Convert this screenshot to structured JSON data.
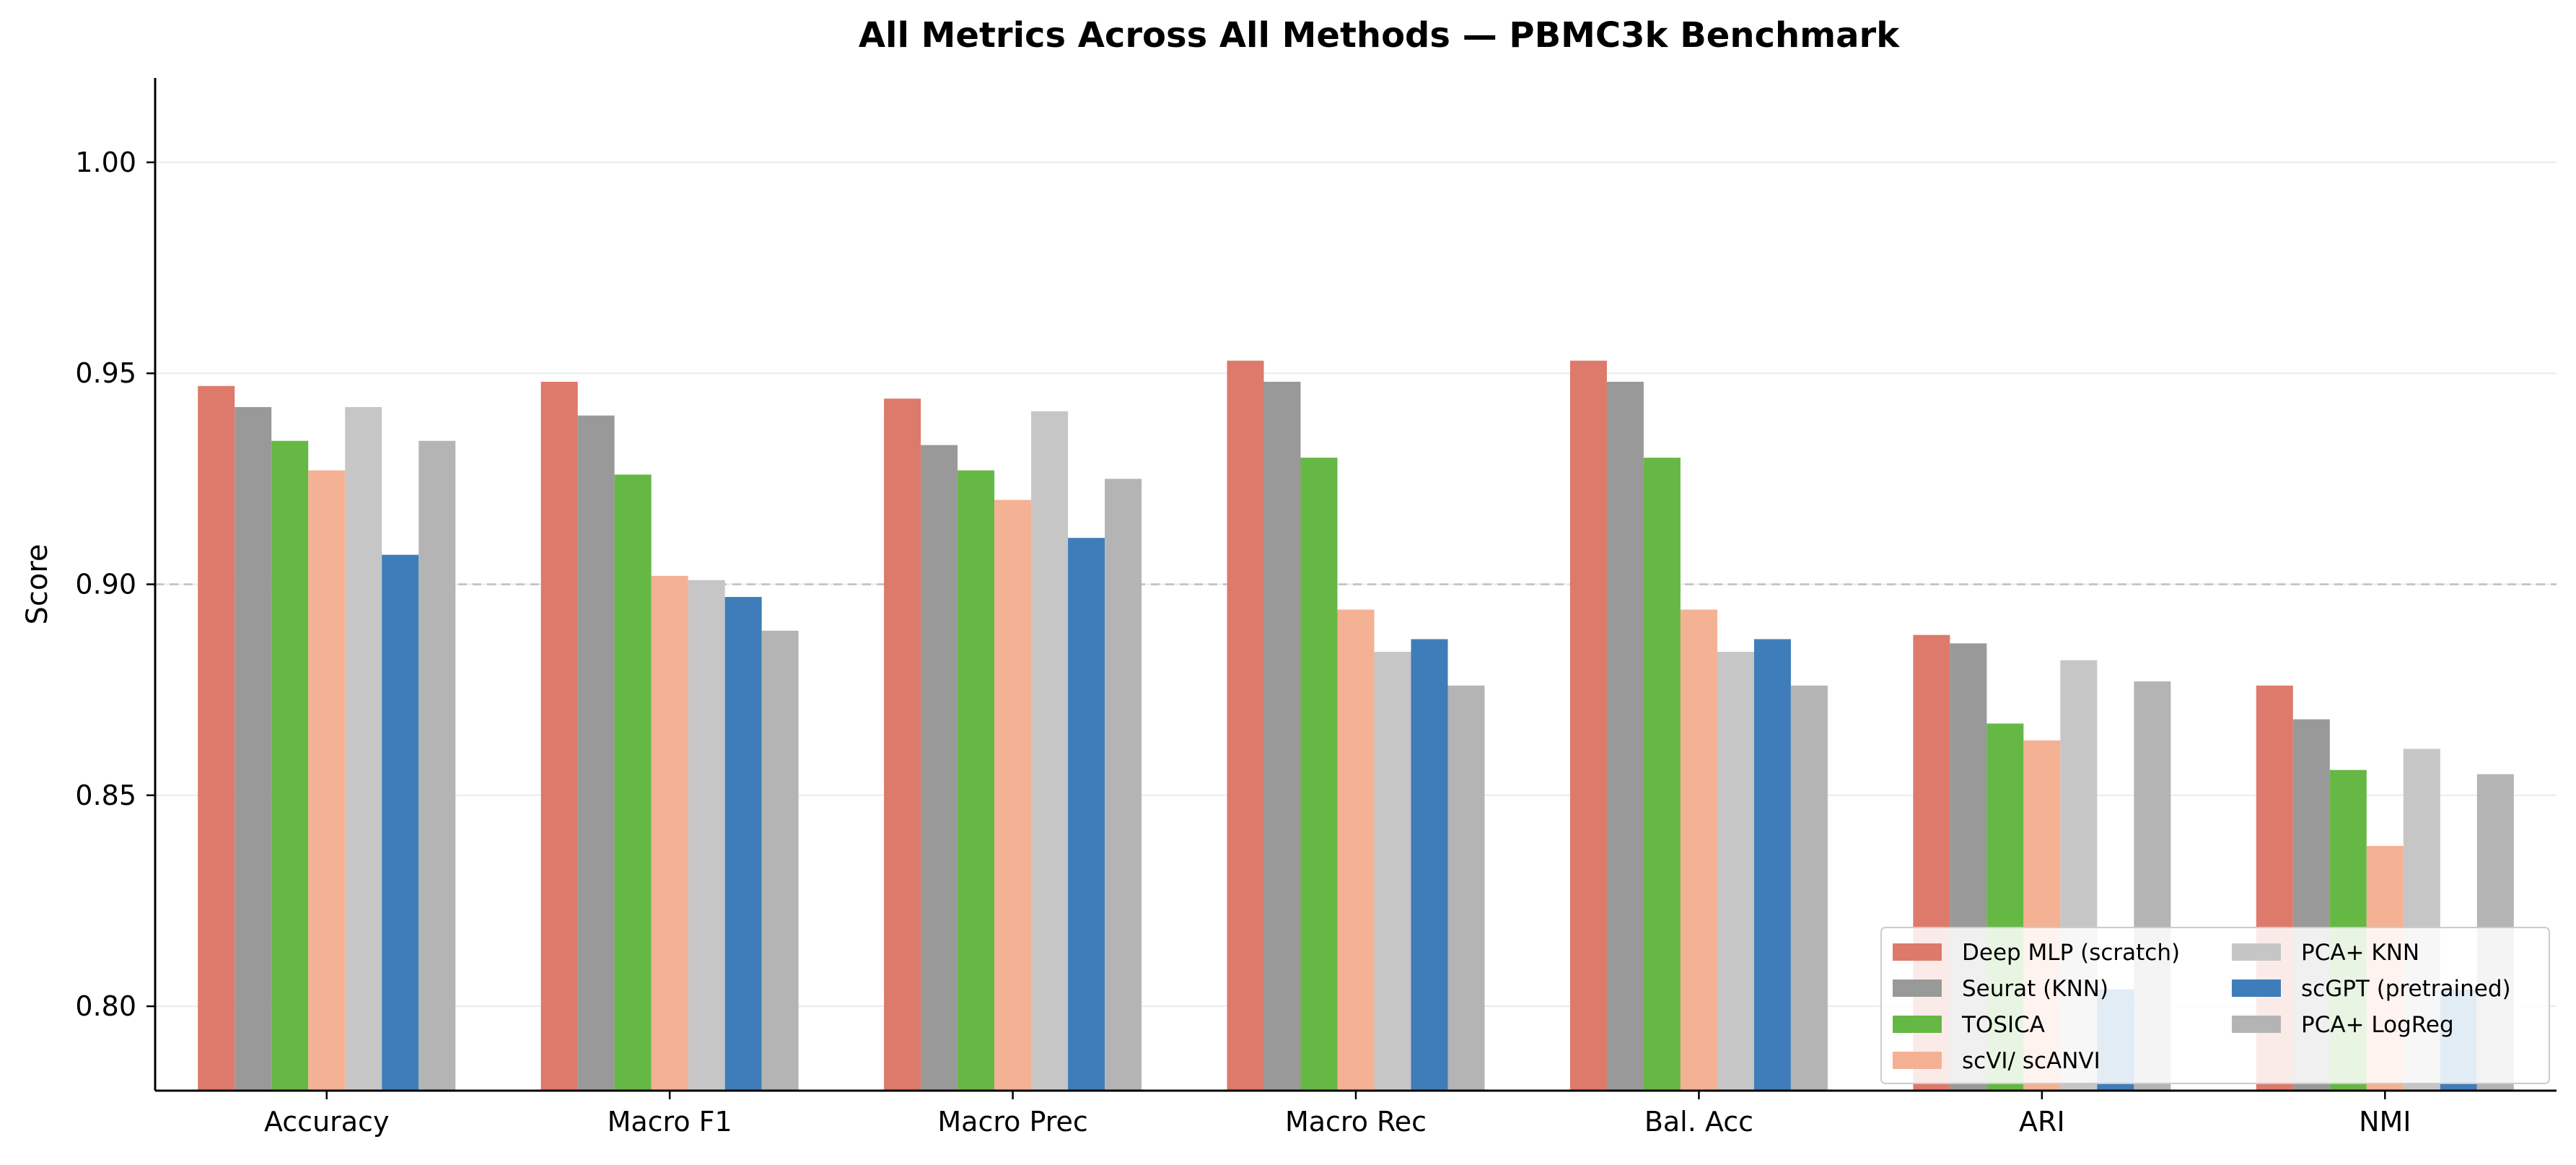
{
  "chart_data": {
    "type": "bar",
    "title": "All Metrics Across All Methods — PBMC3k Benchmark",
    "xlabel": "",
    "ylabel": "Score",
    "ylim": [
      0.78,
      1.02
    ],
    "yticks": [
      0.8,
      0.85,
      0.9,
      0.95,
      1.0
    ],
    "ytick_labels": [
      "0.80",
      "0.85",
      "0.90",
      "0.95",
      "1.00"
    ],
    "grid": "horizontal",
    "reference_line": 0.9,
    "legend_position": "lower-right",
    "categories": [
      "Accuracy",
      "Macro F1",
      "Macro Prec",
      "Macro Rec",
      "Bal. Acc",
      "ARI",
      "NMI"
    ],
    "series": [
      {
        "name": "Deep MLP (scratch)",
        "color": "#dd7a6b",
        "values": [
          0.947,
          0.948,
          0.944,
          0.953,
          0.953,
          0.888,
          0.876
        ]
      },
      {
        "name": "Seurat (KNN)",
        "color": "#999999",
        "values": [
          0.942,
          0.94,
          0.933,
          0.948,
          0.948,
          0.886,
          0.868
        ]
      },
      {
        "name": "TOSICA",
        "color": "#66b845",
        "values": [
          0.934,
          0.926,
          0.927,
          0.93,
          0.93,
          0.867,
          0.856
        ]
      },
      {
        "name": "scVI/ scANVI",
        "color": "#f4b194",
        "values": [
          0.927,
          0.902,
          0.92,
          0.894,
          0.894,
          0.863,
          0.838
        ]
      },
      {
        "name": "PCA+ KNN",
        "color": "#c6c6c6",
        "values": [
          0.942,
          0.901,
          0.941,
          0.884,
          0.884,
          0.882,
          0.861
        ]
      },
      {
        "name": "scGPT (pretrained)",
        "color": "#3f7dba",
        "values": [
          0.907,
          0.897,
          0.911,
          0.887,
          0.887,
          0.804,
          0.804
        ]
      },
      {
        "name": "PCA+ LogReg",
        "color": "#b4b4b4",
        "values": [
          0.934,
          0.889,
          0.925,
          0.876,
          0.876,
          0.877,
          0.855
        ]
      }
    ],
    "legend_order": [
      0,
      1,
      2,
      3,
      4,
      5,
      6
    ]
  }
}
